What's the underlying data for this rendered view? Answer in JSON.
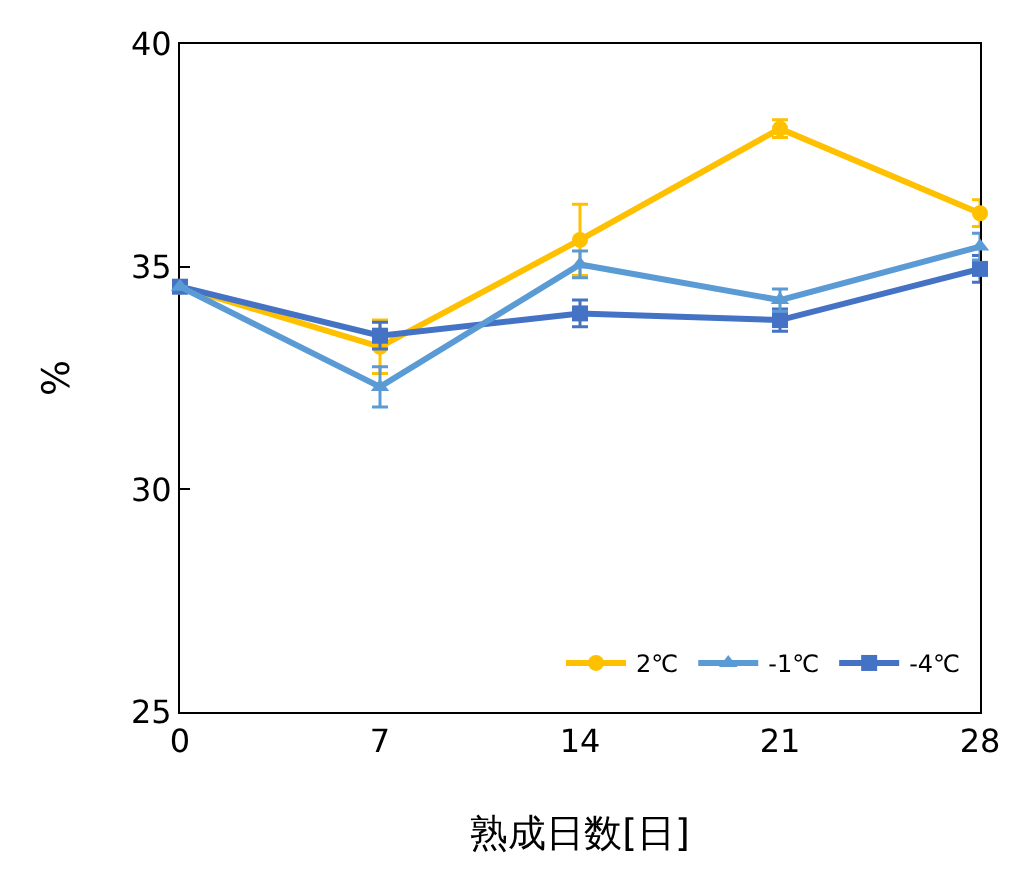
{
  "chart_data": {
    "type": "line",
    "xlabel": "熟成日数[日]",
    "ylabel": "%",
    "x": [
      0,
      7,
      14,
      21,
      28
    ],
    "xlim": [
      0,
      28
    ],
    "xticks": [
      0,
      7,
      14,
      21,
      28
    ],
    "ylim": [
      25,
      40
    ],
    "yticks": [
      25,
      30,
      35,
      40
    ],
    "legend": "bottom right",
    "series": [
      {
        "name": "2℃",
        "color": "#ffc000",
        "marker": "circle",
        "values": [
          34.55,
          33.2,
          35.6,
          38.1,
          36.2
        ],
        "errors": [
          null,
          0.6,
          0.8,
          0.2,
          0.3
        ]
      },
      {
        "name": "-1℃",
        "color": "#5b9bd5",
        "marker": "triangle",
        "values": [
          34.55,
          32.3,
          35.05,
          34.25,
          35.45
        ],
        "errors": [
          null,
          0.45,
          0.3,
          0.25,
          0.3
        ]
      },
      {
        "name": "-4℃",
        "color": "#4472c4",
        "marker": "square",
        "values": [
          34.55,
          33.45,
          33.95,
          33.8,
          34.95
        ],
        "errors": [
          null,
          0.3,
          0.3,
          0.25,
          0.3
        ]
      }
    ]
  }
}
